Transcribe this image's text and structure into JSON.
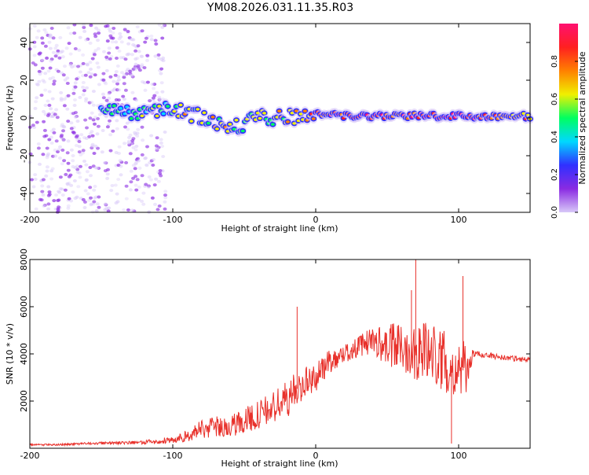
{
  "title": "YM08.2026.031.11.35.R03",
  "chart_data": [
    {
      "type": "heatmap",
      "name": "spectrogram",
      "xlabel": "Height of straight line (km)",
      "ylabel": "Frequency (Hz)",
      "xlim": [
        -200,
        150
      ],
      "ylim": [
        -50,
        50
      ],
      "xticks": [
        -200,
        -100,
        0,
        100
      ],
      "xtick_labels": [
        "-200",
        "-100",
        "0",
        "100"
      ],
      "yticks": [
        -40,
        -20,
        0,
        20,
        40
      ],
      "ytick_labels": [
        "-40",
        "-20",
        "0",
        "20",
        "40"
      ],
      "colorbar": {
        "label": "Normalized spectral amplitude",
        "range": [
          0.0,
          1.0
        ],
        "ticks": [
          0.0,
          0.2,
          0.4,
          0.6,
          0.8
        ],
        "tick_labels": [
          "0.0",
          "0.2",
          "0.4",
          "0.6",
          "0.8"
        ],
        "colormap": [
          "#d8c8f8",
          "#8a2be2",
          "#3030ff",
          "#00d8ff",
          "#00ff60",
          "#f0f000",
          "#ff8000",
          "#ff2020",
          "#ff1070"
        ]
      },
      "features": [
        {
          "description": "scattered low-amplitude noise",
          "x_range": [
            -200,
            -105
          ],
          "freq_range": [
            -50,
            50
          ],
          "amplitude": 0.1
        },
        {
          "description": "signal track",
          "x": [
            -150,
            -120,
            -100,
            -80,
            -60,
            -40,
            -20,
            0,
            20,
            40,
            60,
            80,
            100,
            150
          ],
          "freq": [
            3,
            3,
            6,
            0,
            -6,
            0,
            0,
            2,
            1,
            1,
            1,
            1,
            1,
            1
          ],
          "amplitude": [
            0.3,
            0.35,
            0.45,
            0.45,
            0.45,
            0.4,
            0.5,
            0.7,
            0.8,
            0.8,
            0.7,
            0.8,
            0.85,
            0.55
          ]
        }
      ]
    },
    {
      "type": "line",
      "name": "snr",
      "xlabel": "Height of straight line (km)",
      "ylabel": "SNR (10 * v/v)",
      "xlim": [
        -200,
        150
      ],
      "ylim": [
        0,
        8000
      ],
      "xticks": [
        -200,
        -100,
        0,
        100
      ],
      "xtick_labels": [
        "-200",
        "-100",
        "0",
        "100"
      ],
      "yticks": [
        2000,
        4000,
        6000,
        8000
      ],
      "ytick_labels": [
        "2000",
        "4000",
        "6000",
        "8000"
      ],
      "color": "#e8302a",
      "series": [
        {
          "name": "SNR",
          "x": [
            -200,
            -180,
            -160,
            -140,
            -120,
            -100,
            -90,
            -80,
            -70,
            -60,
            -50,
            -40,
            -30,
            -20,
            -10,
            0,
            10,
            20,
            30,
            40,
            50,
            60,
            70,
            80,
            90,
            100,
            105,
            110,
            120,
            130,
            140,
            150
          ],
          "y": [
            150,
            150,
            200,
            230,
            250,
            350,
            500,
            800,
            900,
            900,
            1200,
            1400,
            1700,
            2100,
            2700,
            3000,
            3700,
            4000,
            4300,
            4600,
            4300,
            4300,
            4200,
            4100,
            3700,
            3300,
            3300,
            4000,
            3950,
            3850,
            3800,
            3750
          ],
          "noise": [
            40,
            40,
            50,
            60,
            80,
            150,
            250,
            400,
            450,
            450,
            550,
            600,
            700,
            800,
            700,
            600,
            500,
            400,
            450,
            600,
            900,
            1100,
            1300,
            1300,
            1300,
            1300,
            1200,
            150,
            120,
            120,
            120,
            120
          ]
        }
      ],
      "peaks": [
        {
          "x": -13,
          "y": 6000
        },
        {
          "x": 70,
          "y": 8000
        },
        {
          "x": 67,
          "y": 6700
        },
        {
          "x": 103,
          "y": 7300
        },
        {
          "x": 95,
          "y": 200
        }
      ]
    }
  ]
}
